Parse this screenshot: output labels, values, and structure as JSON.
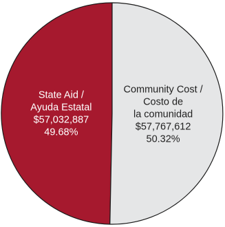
{
  "chart_data": {
    "type": "pie",
    "slices": [
      {
        "label_lines": [
          "State Aid /",
          "Ayuda Estatal"
        ],
        "amount": "$57,032,887",
        "percent_label": "49.68%",
        "value": 57032887,
        "percent": 49.68,
        "color": "#a6192e",
        "text_color": "#ffffff"
      },
      {
        "label_lines": [
          "Community Cost /",
          "Costo de",
          "la comunidad"
        ],
        "amount": "$57,767,612",
        "percent_label": "50.32%",
        "value": 57767612,
        "percent": 50.32,
        "color": "#e5e6e7",
        "text_color": "#222222"
      }
    ],
    "outline_color": "#1a1a1a",
    "start_angle_deg": 0,
    "direction": "counterclockwise"
  }
}
